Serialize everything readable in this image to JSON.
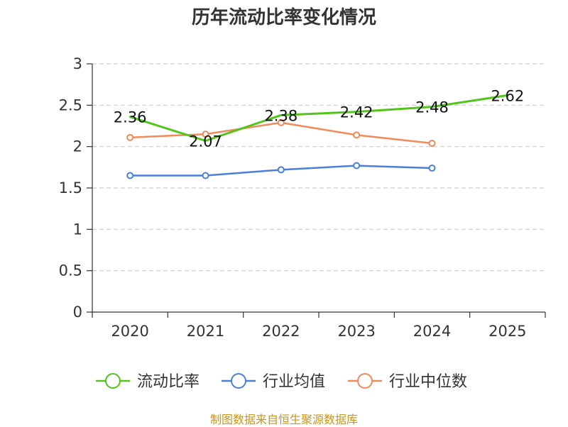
{
  "chart_data": {
    "type": "line",
    "title": "历年流动比率变化情况",
    "categories": [
      "2020",
      "2021",
      "2022",
      "2023",
      "2024",
      "2025"
    ],
    "ylim": [
      0,
      3
    ],
    "yticks": [
      "0",
      "0.5",
      "1",
      "1.5",
      "2",
      "2.5",
      "3"
    ],
    "grid": true,
    "legend_position": "bottom",
    "series": [
      {
        "name": "流动比率",
        "color": "#52c41a",
        "values": [
          2.36,
          2.07,
          2.38,
          2.42,
          2.48,
          2.62
        ],
        "labels": [
          "2.36",
          "2.07",
          "2.38",
          "2.42",
          "2.48",
          "2.62"
        ],
        "markers": false
      },
      {
        "name": "行业均值",
        "color": "#4a7fdc",
        "values": [
          1.65,
          1.65,
          1.72,
          1.77,
          1.74,
          null
        ],
        "markers": true
      },
      {
        "name": "行业中位数",
        "color": "#f08a5a",
        "values": [
          2.11,
          2.15,
          2.29,
          2.14,
          2.04,
          null
        ],
        "markers": true
      }
    ]
  },
  "footer": "制图数据来自恒生聚源数据库"
}
